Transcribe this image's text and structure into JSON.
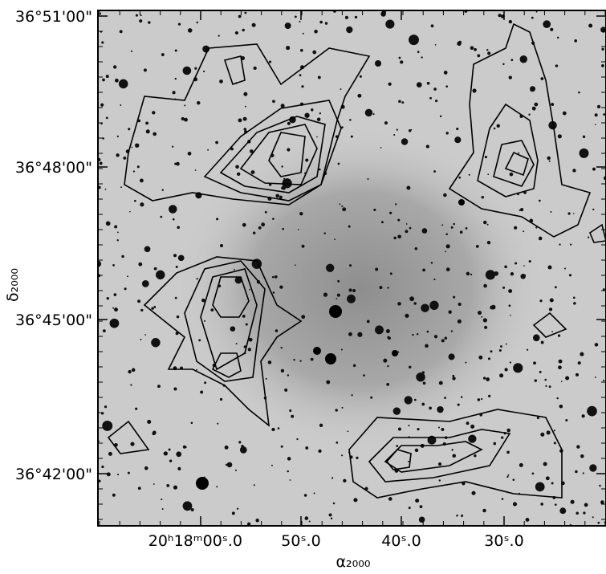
{
  "axes": {
    "y_label": "δ₂₀₀₀",
    "x_label": "α₂₀₀₀",
    "y_ticks": [
      "36°51'00\"",
      "36°48'00\"",
      "36°45'00\"",
      "36°42'00\""
    ],
    "x_ticks": [
      "20ʰ18ᵐ00ˢ.0",
      "50ˢ.0",
      "40ˢ.0",
      "30ˢ.0"
    ]
  }
}
